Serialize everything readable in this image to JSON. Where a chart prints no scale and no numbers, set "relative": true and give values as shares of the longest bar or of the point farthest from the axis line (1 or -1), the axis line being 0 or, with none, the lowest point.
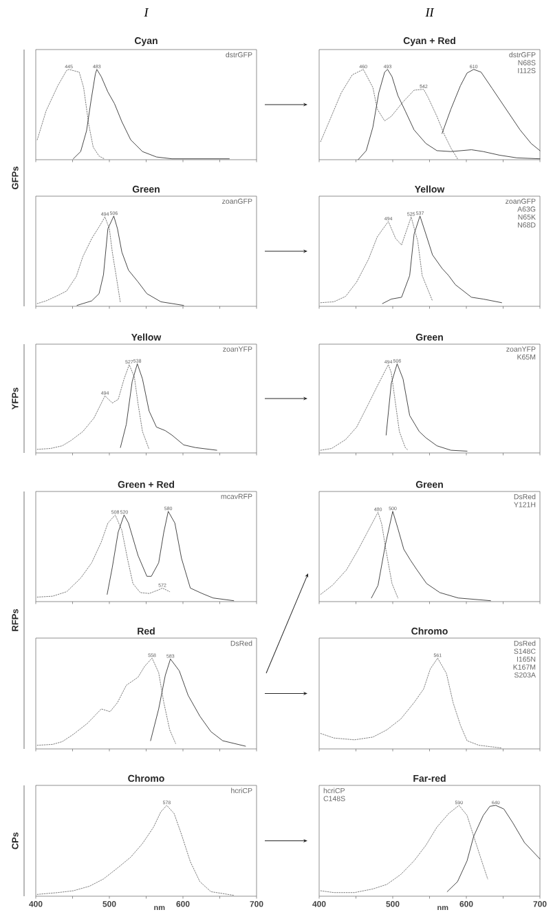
{
  "chart_data": [
    {
      "type": "line",
      "relative": true,
      "subtitle": "I",
      "title": "Cyan",
      "ylabel": "GFPs",
      "xlim": [
        400,
        700
      ],
      "tick_labels": false,
      "xticks": [
        {
          "value": 400,
          "label": null
        },
        {
          "value": 450,
          "label": null
        },
        {
          "value": 500,
          "label": null
        },
        {
          "value": 550,
          "label": null
        },
        {
          "value": 600,
          "label": null
        },
        {
          "value": 650,
          "label": null
        },
        {
          "value": 700,
          "label": null
        }
      ],
      "series": [
        {
          "color": "#6e6e6e",
          "line_style": "dashed",
          "x": [
            402,
            414,
            430,
            442,
            445,
            459,
            465,
            472,
            478,
            486,
            493
          ],
          "values": [
            0.22,
            0.54,
            0.82,
            0.99,
            1.0,
            0.97,
            0.8,
            0.39,
            0.14,
            0.04,
            0.01
          ]
        },
        {
          "color": "#333333",
          "line_style": "solid",
          "x": [
            451,
            461,
            469,
            475,
            481,
            483,
            489,
            498,
            507,
            517,
            529,
            545,
            564,
            585,
            663
          ],
          "values": [
            0.01,
            0.09,
            0.32,
            0.65,
            0.95,
            1.0,
            0.92,
            0.75,
            0.62,
            0.42,
            0.22,
            0.09,
            0.03,
            0.01,
            0.01
          ]
        }
      ],
      "annotations": [
        {
          "text": "445",
          "x": 445,
          "y": 1.0
        },
        {
          "text": "483",
          "x": 483,
          "y": 1.0
        },
        "dstrGFP"
      ]
    },
    {
      "type": "line",
      "relative": true,
      "subtitle": "II",
      "title": "Cyan + Red",
      "xlim": [
        400,
        700
      ],
      "tick_labels": false,
      "xticks": [
        {
          "value": 400,
          "label": null
        },
        {
          "value": 450,
          "label": null
        },
        {
          "value": 500,
          "label": null
        },
        {
          "value": 550,
          "label": null
        },
        {
          "value": 600,
          "label": null
        },
        {
          "value": 650,
          "label": null
        },
        {
          "value": 700,
          "label": null
        }
      ],
      "series": [
        {
          "color": "#6e6e6e",
          "line_style": "dashed",
          "x": [
            402,
            414,
            430,
            445,
            460,
            473,
            479,
            489,
            498,
            514,
            529,
            542,
            548,
            560,
            570,
            579,
            588
          ],
          "values": [
            0.2,
            0.43,
            0.74,
            0.94,
            1.0,
            0.8,
            0.56,
            0.43,
            0.48,
            0.64,
            0.77,
            0.78,
            0.69,
            0.48,
            0.28,
            0.13,
            0.01
          ]
        },
        {
          "color": "#333333",
          "line_style": "solid",
          "x": [
            453,
            464,
            473,
            481,
            489,
            493,
            499,
            507,
            517,
            529,
            545,
            560,
            579,
            607,
            623,
            645,
            669,
            700
          ],
          "values": [
            0,
            0.1,
            0.36,
            0.74,
            0.97,
            1.0,
            0.92,
            0.71,
            0.54,
            0.33,
            0.18,
            0.1,
            0.09,
            0.11,
            0.09,
            0.05,
            0.02,
            0.01
          ]
        },
        {
          "color": "#333333",
          "line_style": "solid",
          "x": [
            567,
            579,
            592,
            601,
            610,
            620,
            635,
            654,
            673,
            688,
            700
          ],
          "values": [
            0.29,
            0.56,
            0.82,
            0.96,
            1.0,
            0.97,
            0.79,
            0.56,
            0.33,
            0.18,
            0.1
          ]
        }
      ],
      "annotations": [
        {
          "text": "460",
          "x": 460,
          "y": 1.0
        },
        {
          "text": "493",
          "x": 493,
          "y": 1.0
        },
        {
          "text": "542",
          "x": 542,
          "y": 0.78
        },
        {
          "text": "610",
          "x": 610,
          "y": 1.0
        },
        "dstrGFP",
        "N68S",
        "I112S"
      ]
    },
    {
      "type": "line",
      "relative": true,
      "title": "Green",
      "xlim": [
        400,
        700
      ],
      "tick_labels": false,
      "xticks": [
        {
          "value": 400,
          "label": null
        },
        {
          "value": 450,
          "label": null
        },
        {
          "value": 500,
          "label": null
        },
        {
          "value": 550,
          "label": null
        },
        {
          "value": 600,
          "label": null
        },
        {
          "value": 650,
          "label": null
        },
        {
          "value": 700,
          "label": null
        }
      ],
      "series": [
        {
          "color": "#6e6e6e",
          "line_style": "dashed",
          "x": [
            402,
            414,
            430,
            442,
            455,
            464,
            476,
            486,
            494,
            500,
            504,
            509,
            515
          ],
          "values": [
            0.03,
            0.06,
            0.12,
            0.17,
            0.33,
            0.55,
            0.75,
            0.88,
            0.99,
            0.86,
            0.6,
            0.35,
            0.04
          ]
        },
        {
          "color": "#333333",
          "line_style": "solid",
          "x": [
            456,
            476,
            486,
            492,
            498,
            506,
            511,
            517,
            526,
            539,
            551,
            570,
            601
          ],
          "values": [
            0.01,
            0.06,
            0.14,
            0.35,
            0.86,
            1.0,
            0.86,
            0.6,
            0.4,
            0.27,
            0.14,
            0.05,
            0.01
          ]
        }
      ],
      "annotations": [
        {
          "text": "494",
          "x": 494,
          "y": 0.99
        },
        {
          "text": "506",
          "x": 506,
          "y": 1.0
        },
        "zoanGFP"
      ]
    },
    {
      "type": "line",
      "relative": true,
      "title": "Yellow",
      "xlim": [
        400,
        700
      ],
      "tick_labels": false,
      "xticks": [
        {
          "value": 400,
          "label": null
        },
        {
          "value": 450,
          "label": null
        },
        {
          "value": 500,
          "label": null
        },
        {
          "value": 550,
          "label": null
        },
        {
          "value": 600,
          "label": null
        },
        {
          "value": 650,
          "label": null
        },
        {
          "value": 700,
          "label": null
        }
      ],
      "series": [
        {
          "color": "#6e6e6e",
          "line_style": "dashed",
          "x": [
            402,
            420,
            436,
            451,
            467,
            479,
            494,
            504,
            512,
            520,
            525,
            534,
            540,
            554
          ],
          "values": [
            0.04,
            0.05,
            0.11,
            0.27,
            0.52,
            0.77,
            0.94,
            0.75,
            0.68,
            0.87,
            0.99,
            0.72,
            0.34,
            0.06
          ]
        },
        {
          "color": "#333333",
          "line_style": "solid",
          "x": [
            486,
            498,
            512,
            523,
            529,
            537,
            545,
            554,
            567,
            576,
            585,
            607,
            623,
            648
          ],
          "values": [
            0.03,
            0.08,
            0.1,
            0.34,
            0.8,
            1.0,
            0.8,
            0.57,
            0.42,
            0.34,
            0.24,
            0.1,
            0.08,
            0.04
          ]
        }
      ],
      "annotations": [
        {
          "text": "494",
          "x": 494,
          "y": 0.94
        },
        {
          "text": "525",
          "x": 525,
          "y": 0.99
        },
        {
          "text": "537",
          "x": 537,
          "y": 1.0
        },
        "zoanGFP",
        "A63G",
        "N65K",
        "N68D"
      ]
    },
    {
      "type": "line",
      "relative": true,
      "title": "Yellow",
      "ylabel": "YFPs",
      "xlim": [
        400,
        700
      ],
      "tick_labels": false,
      "xticks": [
        {
          "value": 400,
          "label": null
        },
        {
          "value": 450,
          "label": null
        },
        {
          "value": 500,
          "label": null
        },
        {
          "value": 550,
          "label": null
        },
        {
          "value": 600,
          "label": null
        },
        {
          "value": 650,
          "label": null
        },
        {
          "value": 700,
          "label": null
        }
      ],
      "series": [
        {
          "color": "#6e6e6e",
          "line_style": "dashed",
          "x": [
            402,
            420,
            436,
            448,
            464,
            479,
            494,
            504,
            512,
            520,
            527,
            534,
            539,
            545,
            554
          ],
          "values": [
            0.04,
            0.05,
            0.08,
            0.14,
            0.24,
            0.39,
            0.64,
            0.56,
            0.6,
            0.83,
            0.99,
            0.85,
            0.55,
            0.24,
            0.04
          ]
        },
        {
          "color": "#333333",
          "line_style": "solid",
          "x": [
            515,
            523,
            531,
            538,
            545,
            554,
            564,
            576,
            585,
            601,
            617,
            646
          ],
          "values": [
            0.06,
            0.32,
            0.8,
            1.0,
            0.83,
            0.47,
            0.29,
            0.25,
            0.2,
            0.09,
            0.06,
            0.03
          ]
        }
      ],
      "annotations": [
        {
          "text": "494",
          "x": 494,
          "y": 0.64
        },
        {
          "text": "527",
          "x": 527,
          "y": 0.99
        },
        {
          "text": "538",
          "x": 538,
          "y": 1.0
        },
        "zoanYFP"
      ]
    },
    {
      "type": "line",
      "relative": true,
      "title": "Green",
      "xlim": [
        400,
        700
      ],
      "tick_labels": false,
      "xticks": [
        {
          "value": 400,
          "label": null
        },
        {
          "value": 450,
          "label": null
        },
        {
          "value": 500,
          "label": null
        },
        {
          "value": 550,
          "label": null
        },
        {
          "value": 600,
          "label": null
        },
        {
          "value": 650,
          "label": null
        },
        {
          "value": 700,
          "label": null
        }
      ],
      "series": [
        {
          "color": "#6e6e6e",
          "line_style": "dashed",
          "x": [
            402,
            417,
            436,
            451,
            467,
            479,
            494,
            498,
            503,
            509,
            517,
            521
          ],
          "values": [
            0.03,
            0.05,
            0.15,
            0.29,
            0.55,
            0.75,
            0.99,
            0.9,
            0.6,
            0.24,
            0.06,
            0.03
          ]
        },
        {
          "color": "#333333",
          "line_style": "solid",
          "x": [
            491,
            498,
            506,
            514,
            523,
            536,
            545,
            560,
            579,
            601
          ],
          "values": [
            0.2,
            0.78,
            1.0,
            0.83,
            0.42,
            0.24,
            0.17,
            0.08,
            0.03,
            0.02
          ]
        }
      ],
      "annotations": [
        {
          "text": "494",
          "x": 494,
          "y": 0.99
        },
        {
          "text": "506",
          "x": 506,
          "y": 1.0
        },
        "zoanYFP",
        "K65M"
      ]
    },
    {
      "type": "line",
      "relative": true,
      "title": "Green + Red",
      "ylabel": "RFPs",
      "xlim": [
        400,
        700
      ],
      "tick_labels": false,
      "xticks": [
        {
          "value": 400,
          "label": null
        },
        {
          "value": 450,
          "label": null
        },
        {
          "value": 500,
          "label": null
        },
        {
          "value": 550,
          "label": null
        },
        {
          "value": 600,
          "label": null
        },
        {
          "value": 650,
          "label": null
        },
        {
          "value": 700,
          "label": null
        }
      ],
      "series": [
        {
          "color": "#6e6e6e",
          "line_style": "dashed",
          "x": [
            402,
            423,
            442,
            461,
            476,
            489,
            498,
            508,
            517,
            525,
            532,
            542,
            554,
            567,
            572,
            582
          ],
          "values": [
            0.05,
            0.06,
            0.11,
            0.26,
            0.43,
            0.66,
            0.87,
            0.96,
            0.79,
            0.46,
            0.2,
            0.1,
            0.09,
            0.13,
            0.15,
            0.11
          ]
        },
        {
          "color": "#333333",
          "line_style": "solid",
          "x": [
            497,
            504,
            512,
            520,
            526,
            539,
            551,
            557,
            567,
            574,
            580,
            589,
            598,
            610,
            626,
            641,
            669
          ],
          "values": [
            0.08,
            0.38,
            0.77,
            0.96,
            0.87,
            0.51,
            0.28,
            0.28,
            0.43,
            0.77,
            1.0,
            0.87,
            0.48,
            0.15,
            0.09,
            0.04,
            0.01
          ]
        }
      ],
      "annotations": [
        {
          "text": "508",
          "x": 508,
          "y": 0.96
        },
        {
          "text": "520",
          "x": 520,
          "y": 0.96
        },
        {
          "text": "580",
          "x": 580,
          "y": 1.0
        },
        {
          "text": "572",
          "x": 572,
          "y": 0.15
        },
        "mcavRFP"
      ]
    },
    {
      "type": "line",
      "relative": true,
      "title": "Green",
      "xlim": [
        400,
        700
      ],
      "tick_labels": false,
      "xticks": [
        {
          "value": 400,
          "label": null
        },
        {
          "value": 450,
          "label": null
        },
        {
          "value": 500,
          "label": null
        },
        {
          "value": 550,
          "label": null
        },
        {
          "value": 600,
          "label": null
        },
        {
          "value": 650,
          "label": null
        },
        {
          "value": 700,
          "label": null
        }
      ],
      "series": [
        {
          "color": "#6e6e6e",
          "line_style": "dashed",
          "x": [
            402,
            418,
            437,
            452,
            465,
            480,
            485,
            491,
            499,
            507
          ],
          "values": [
            0.08,
            0.18,
            0.35,
            0.56,
            0.76,
            0.99,
            0.86,
            0.56,
            0.2,
            0.04
          ]
        },
        {
          "color": "#333333",
          "line_style": "solid",
          "x": [
            471,
            480,
            490,
            500,
            507,
            515,
            524,
            533,
            546,
            564,
            589,
            633
          ],
          "values": [
            0.04,
            0.18,
            0.63,
            1.0,
            0.81,
            0.58,
            0.46,
            0.35,
            0.2,
            0.1,
            0.04,
            0.01
          ]
        }
      ],
      "annotations": [
        {
          "text": "480",
          "x": 480,
          "y": 0.99
        },
        {
          "text": "500",
          "x": 500,
          "y": 1.0
        },
        "DsRed",
        "Y121H"
      ]
    },
    {
      "type": "line",
      "relative": true,
      "title": "Red",
      "xlim": [
        400,
        700
      ],
      "tick_labels": false,
      "xticks": [
        {
          "value": 400,
          "label": null
        },
        {
          "value": 450,
          "label": null
        },
        {
          "value": 500,
          "label": null
        },
        {
          "value": 550,
          "label": null
        },
        {
          "value": 600,
          "label": null
        },
        {
          "value": 650,
          "label": null
        },
        {
          "value": 700,
          "label": null
        }
      ],
      "series": [
        {
          "color": "#6e6e6e",
          "line_style": "dashed",
          "x": [
            402,
            423,
            436,
            451,
            470,
            489,
            501,
            511,
            523,
            539,
            548,
            558,
            567,
            574,
            582,
            590
          ],
          "values": [
            0.04,
            0.05,
            0.08,
            0.16,
            0.28,
            0.44,
            0.41,
            0.51,
            0.7,
            0.79,
            0.91,
            1.0,
            0.84,
            0.51,
            0.21,
            0.06
          ]
        },
        {
          "color": "#333333",
          "line_style": "solid",
          "x": [
            556,
            567,
            576,
            583,
            595,
            607,
            623,
            638,
            654,
            685
          ],
          "values": [
            0.09,
            0.44,
            0.81,
            0.99,
            0.86,
            0.59,
            0.36,
            0.19,
            0.09,
            0.03
          ]
        }
      ],
      "annotations": [
        {
          "text": "558",
          "x": 558,
          "y": 1.0
        },
        {
          "text": "583",
          "x": 583,
          "y": 0.99
        },
        "DsRed"
      ]
    },
    {
      "type": "line",
      "relative": true,
      "title": "Chromo",
      "xlim": [
        400,
        700
      ],
      "tick_labels": false,
      "xticks": [
        {
          "value": 400,
          "label": null
        },
        {
          "value": 450,
          "label": null
        },
        {
          "value": 500,
          "label": null
        },
        {
          "value": 550,
          "label": null
        },
        {
          "value": 600,
          "label": null
        },
        {
          "value": 650,
          "label": null
        },
        {
          "value": 700,
          "label": null
        }
      ],
      "series": [
        {
          "color": "#6e6e6e",
          "line_style": "dashed",
          "x": [
            402,
            420,
            448,
            473,
            492,
            511,
            529,
            542,
            551,
            561,
            573,
            582,
            592,
            601,
            617,
            648
          ],
          "values": [
            0.17,
            0.12,
            0.1,
            0.13,
            0.21,
            0.33,
            0.51,
            0.66,
            0.88,
            1.0,
            0.83,
            0.51,
            0.26,
            0.09,
            0.04,
            0.01
          ]
        }
      ],
      "annotations": [
        {
          "text": "561",
          "x": 561,
          "y": 1.0
        },
        "DsRed",
        "S148C",
        "I165N",
        "K167M",
        "S203A"
      ]
    },
    {
      "type": "line",
      "relative": true,
      "title": "Chromo",
      "ylabel": "CPs",
      "xlabel": "nm",
      "xlim": [
        400,
        700
      ],
      "tick_labels": "x",
      "xticks": [
        400,
        {
          "value": 450,
          "label": null
        },
        500,
        {
          "value": 550,
          "label": null
        },
        600,
        {
          "value": 650,
          "label": null
        },
        700
      ],
      "series": [
        {
          "color": "#6e6e6e",
          "line_style": "dashed",
          "x": [
            402,
            430,
            451,
            473,
            492,
            511,
            529,
            545,
            560,
            570,
            578,
            588,
            598,
            610,
            623,
            638,
            669
          ],
          "values": [
            0.02,
            0.04,
            0.06,
            0.11,
            0.19,
            0.31,
            0.43,
            0.58,
            0.76,
            0.93,
            1.0,
            0.91,
            0.68,
            0.38,
            0.16,
            0.05,
            0.01
          ]
        }
      ],
      "annotations": [
        {
          "text": "578",
          "x": 578,
          "y": 1.0
        },
        "hcriCP"
      ]
    },
    {
      "type": "line",
      "relative": true,
      "title": "Far-red",
      "xlabel": "nm",
      "xlim": [
        400,
        700
      ],
      "tick_labels": "x",
      "xticks": [
        400,
        {
          "value": 450,
          "label": null
        },
        500,
        {
          "value": 550,
          "label": null
        },
        600,
        {
          "value": 650,
          "label": null
        },
        700
      ],
      "series": [
        {
          "color": "#6e6e6e",
          "line_style": "dashed",
          "x": [
            402,
            420,
            448,
            473,
            492,
            511,
            529,
            545,
            560,
            576,
            590,
            601,
            610,
            620,
            629
          ],
          "values": [
            0.06,
            0.04,
            0.04,
            0.08,
            0.13,
            0.24,
            0.39,
            0.56,
            0.76,
            0.91,
            1.0,
            0.89,
            0.66,
            0.41,
            0.19
          ]
        },
        {
          "color": "#333333",
          "line_style": "solid",
          "x": [
            574,
            588,
            601,
            610,
            623,
            632,
            640,
            651,
            663,
            679,
            700
          ],
          "values": [
            0.05,
            0.16,
            0.39,
            0.66,
            0.89,
            0.99,
            1.0,
            0.96,
            0.81,
            0.59,
            0.41
          ]
        }
      ],
      "annotations": [
        {
          "text": "590",
          "x": 590,
          "y": 1.0
        },
        {
          "text": "640",
          "x": 640,
          "y": 1.0
        },
        "hcriCP",
        "C148S"
      ]
    }
  ]
}
